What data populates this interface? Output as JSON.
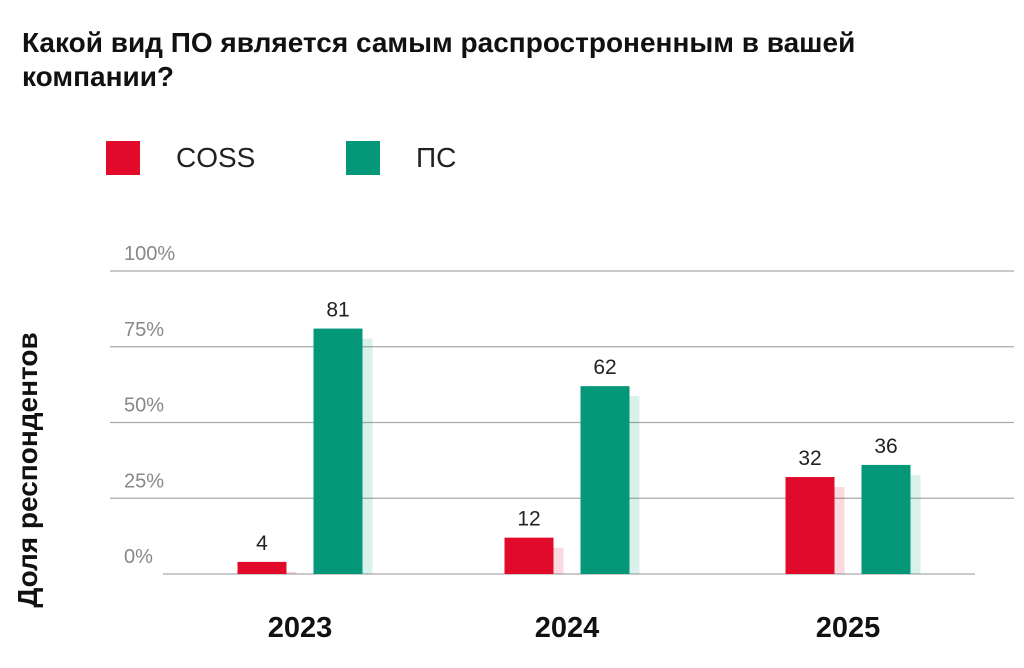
{
  "title": "Какой вид ПО является самым распростроненным в вашей компании?",
  "colors": {
    "coss": "#e10a2a",
    "ps": "#049879",
    "grid": "#aaaaaa",
    "tick": "#888888"
  },
  "legend": [
    {
      "label": "COSS",
      "color": "#e10a2a"
    },
    {
      "label": "ПС",
      "color": "#049879"
    }
  ],
  "chart_data": {
    "type": "bar",
    "title": "Какой вид ПО является самым распростроненным в вашей компании?",
    "xlabel": "",
    "ylabel": "Доля респондентов",
    "categories": [
      "2023",
      "2024",
      "2025"
    ],
    "series": [
      {
        "name": "COSS",
        "color": "#e10a2a",
        "values": [
          4,
          12,
          32
        ]
      },
      {
        "name": "ПС",
        "color": "#049879",
        "values": [
          81,
          62,
          36
        ]
      }
    ],
    "yticks": [
      "0%",
      "25%",
      "50%",
      "75%",
      "100%"
    ],
    "ylim": [
      0,
      100
    ],
    "grid": true,
    "legend_position": "top-left"
  }
}
